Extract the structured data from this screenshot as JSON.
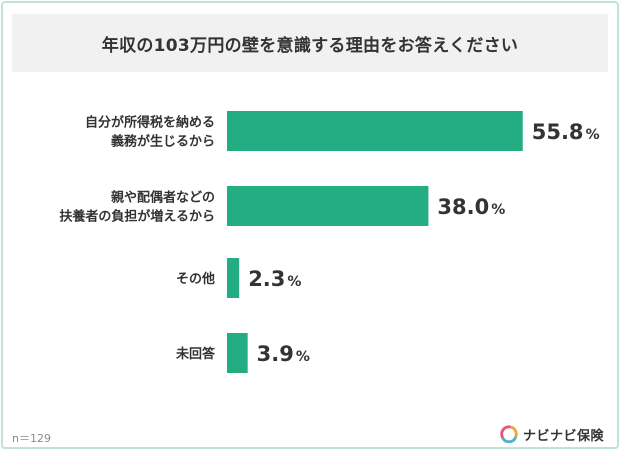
{
  "chart_data": {
    "type": "bar",
    "orientation": "horizontal",
    "title": "年収の103万円の壁を意識する理由をお答えください",
    "categories": [
      [
        "自分が所得税を納める",
        "義務が生じるから"
      ],
      [
        "親や配偶者などの",
        "扶養者の負担が増えるから"
      ],
      [
        "その他"
      ],
      [
        "未回答"
      ]
    ],
    "values": [
      55.8,
      38.0,
      2.3,
      3.9
    ],
    "value_labels": [
      "55.8",
      "38.0",
      "2.3",
      "3.9"
    ],
    "unit": "%",
    "bar_color": "#24ad82",
    "xlim": [
      0,
      100
    ],
    "grid": false
  },
  "footer": {
    "sample_size": "n＝129"
  },
  "brand": {
    "name": "ナビナビ保険",
    "mark_icon": "navinavi-logo-icon",
    "mark_colors": [
      "#f0a43a",
      "#4cb6c9",
      "#e6567a"
    ]
  }
}
